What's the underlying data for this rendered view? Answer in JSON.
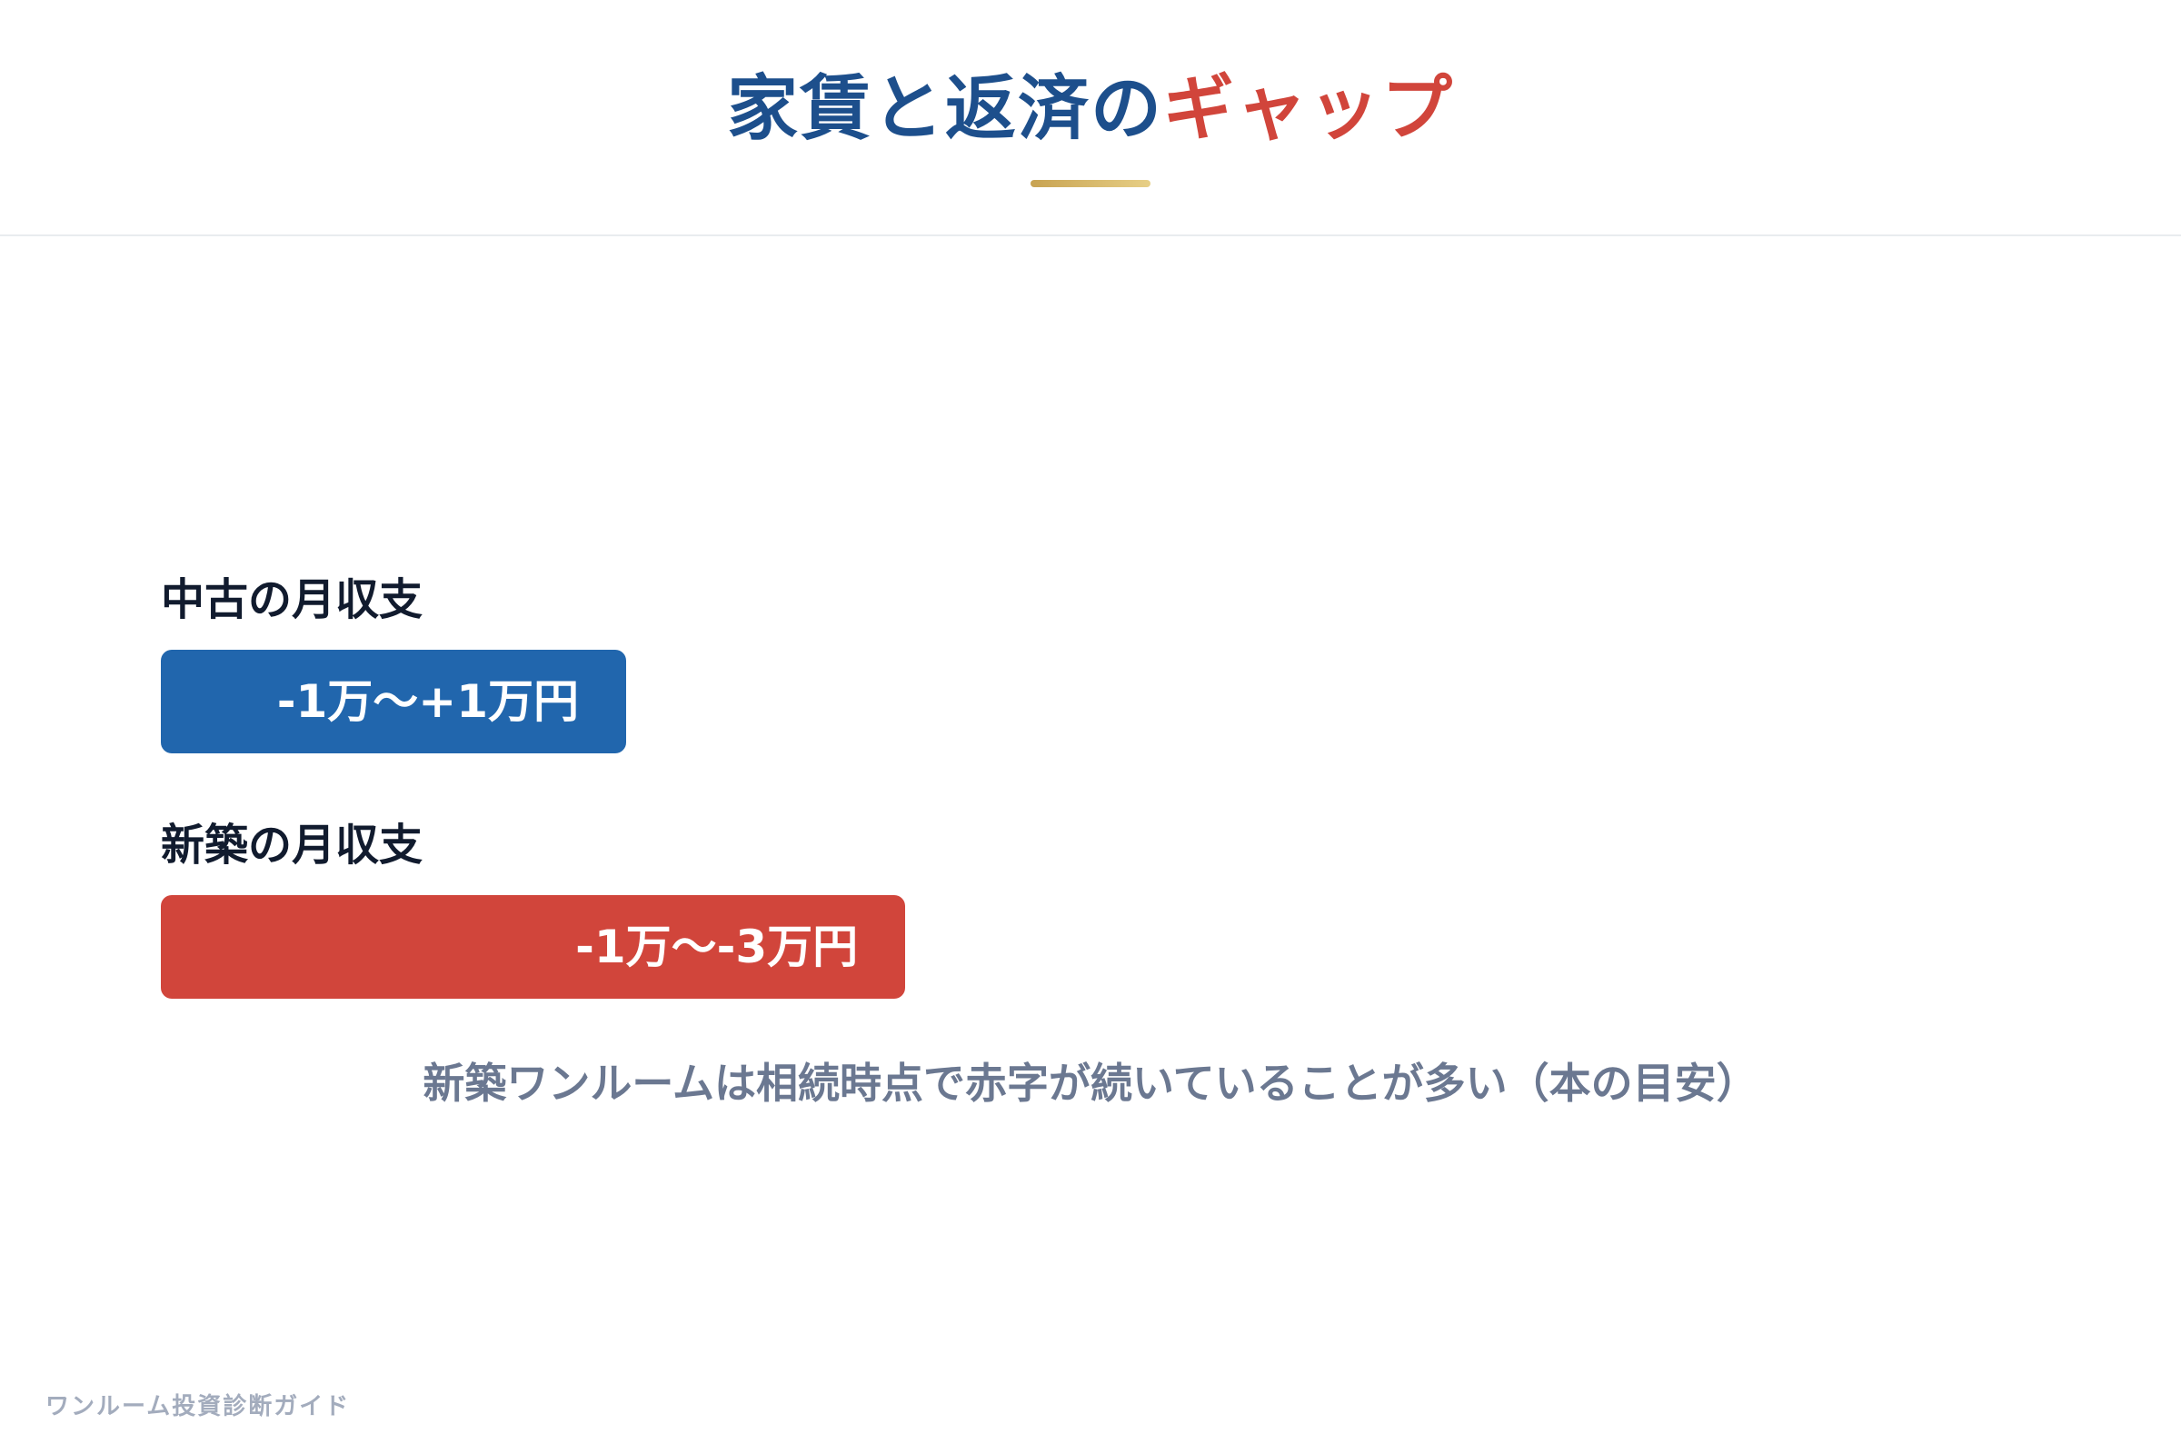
{
  "title": {
    "main": "家賃と返済の",
    "accent": "ギャップ"
  },
  "colors": {
    "title_main": "#1d4f8c",
    "title_accent": "#d1453b",
    "underline_gold": "#c8a352",
    "used_bar": "#2166ad",
    "new_bar": "#d1453b"
  },
  "chart_data": {
    "type": "bar",
    "orientation": "horizontal",
    "categories": [
      "中古の月収支",
      "新築の月収支"
    ],
    "series": [
      {
        "values": [
          2,
          3.2
        ],
        "value_labels": [
          "-1万〜+1万円",
          "-1万〜-3万円"
        ],
        "colors": [
          "#2166ad",
          "#d1453b"
        ]
      }
    ],
    "xlim": [
      0,
      4
    ],
    "grid": false
  },
  "note": "新築ワンルームは相続時点で赤字が続いていることが多い（本の目安）",
  "footer": "ワンルーム投資診断ガイド"
}
